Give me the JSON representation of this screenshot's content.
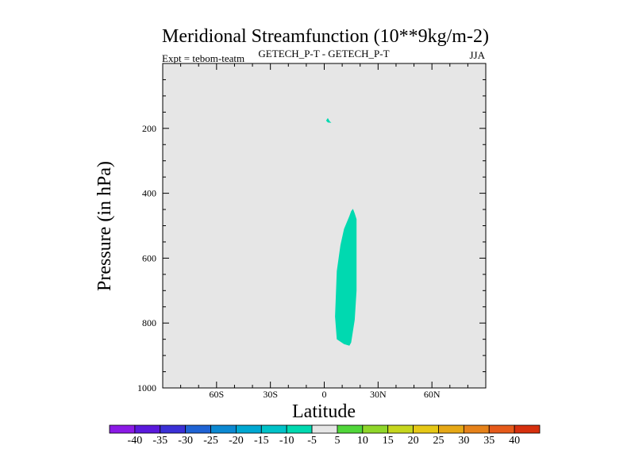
{
  "chart_data": {
    "type": "contour",
    "title": "Meridional Streamfunction (10**9kg/m-2)",
    "left_label": "Expt = tebom-teatm",
    "center_label": "GETECH_P-T - GETECH_P-T",
    "right_label": "JJA",
    "xlabel": "Latitude",
    "ylabel": "Pressure (in hPa)",
    "xlim": [
      -90,
      90
    ],
    "ylim": [
      1000,
      0
    ],
    "x_ticks": [
      {
        "value": -60,
        "label": "60S"
      },
      {
        "value": -30,
        "label": "30S"
      },
      {
        "value": 0,
        "label": "0"
      },
      {
        "value": 30,
        "label": "30N"
      },
      {
        "value": 60,
        "label": "60N"
      }
    ],
    "y_ticks": [
      {
        "value": 200,
        "label": "200"
      },
      {
        "value": 400,
        "label": "400"
      },
      {
        "value": 600,
        "label": "600"
      },
      {
        "value": 800,
        "label": "800"
      },
      {
        "value": 1000,
        "label": "1000"
      }
    ],
    "background_color": "#e6e6e6",
    "shaded_regions": [
      {
        "name": "small-cell",
        "level": -5,
        "color": "#00d9b0",
        "points": [
          [
            1,
            176
          ],
          [
            2,
            168
          ],
          [
            3,
            178
          ],
          [
            4,
            183
          ],
          [
            2,
            182
          ]
        ]
      },
      {
        "name": "main-cell",
        "level": -5,
        "color": "#00d9b0",
        "points": [
          [
            16,
            448
          ],
          [
            17,
            462
          ],
          [
            18,
            480
          ],
          [
            18,
            560
          ],
          [
            18,
            700
          ],
          [
            17,
            790
          ],
          [
            15,
            860
          ],
          [
            14,
            870
          ],
          [
            11,
            865
          ],
          [
            7,
            850
          ],
          [
            6,
            780
          ],
          [
            7,
            640
          ],
          [
            9,
            560
          ],
          [
            11,
            510
          ],
          [
            14,
            470
          ],
          [
            15,
            455
          ]
        ]
      }
    ],
    "colorbar": {
      "levels": [
        -40,
        -35,
        -30,
        -25,
        -20,
        -15,
        -10,
        -5,
        5,
        10,
        15,
        20,
        25,
        30,
        35,
        40
      ],
      "colors": [
        "#8b1ae6",
        "#5a19dc",
        "#3b30d6",
        "#1f63d4",
        "#0c89d2",
        "#00a8d2",
        "#00c2c8",
        "#00d9b0",
        "#e6e6e6",
        "#50d63a",
        "#8fd62a",
        "#c6d61e",
        "#e6c816",
        "#e6a816",
        "#e6821a",
        "#e65a1a",
        "#d6300e"
      ]
    }
  }
}
